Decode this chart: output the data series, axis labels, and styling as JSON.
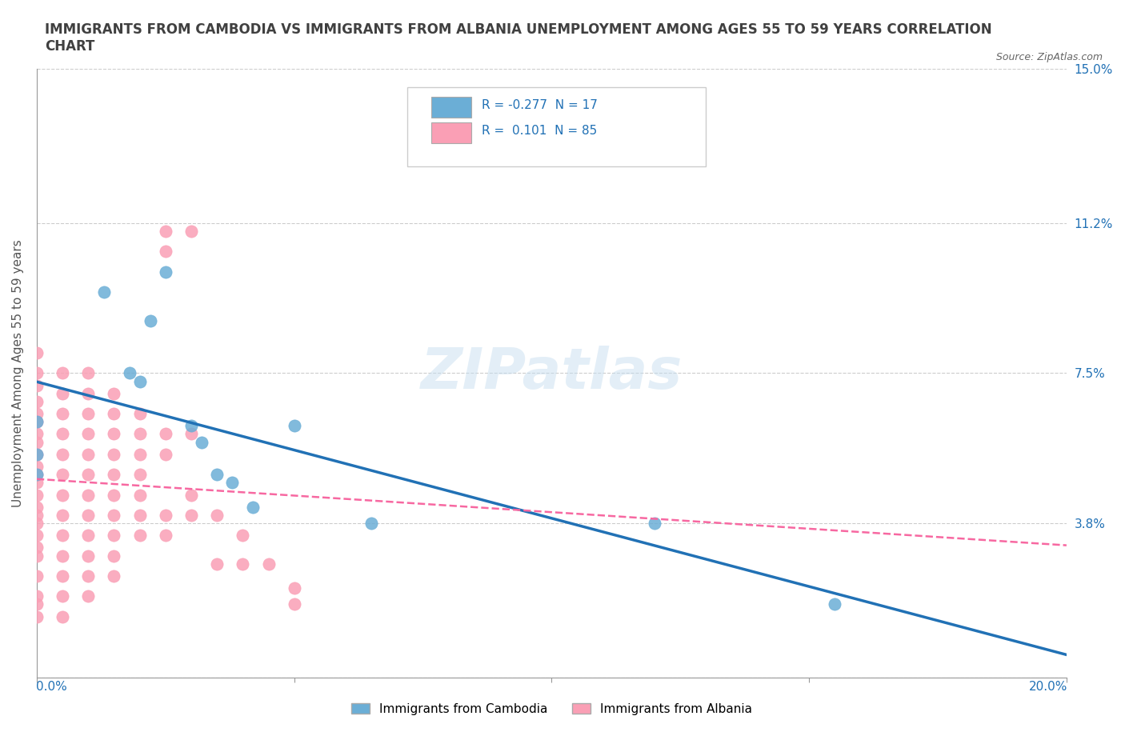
{
  "title": "IMMIGRANTS FROM CAMBODIA VS IMMIGRANTS FROM ALBANIA UNEMPLOYMENT AMONG AGES 55 TO 59 YEARS CORRELATION\nCHART",
  "source": "Source: ZipAtlas.com",
  "ylabel": "Unemployment Among Ages 55 to 59 years",
  "xlim": [
    0.0,
    0.2
  ],
  "ylim": [
    0.0,
    0.15
  ],
  "xticks": [
    0.0,
    0.05,
    0.1,
    0.15,
    0.2
  ],
  "ytick_vals": [
    0.0,
    0.038,
    0.075,
    0.112,
    0.15
  ],
  "ytick_labels": [
    "",
    "3.8%",
    "7.5%",
    "11.2%",
    "15.0%"
  ],
  "watermark": "ZIPatlas",
  "legend_labels": [
    "Immigrants from Cambodia",
    "Immigrants from Albania"
  ],
  "color_cambodia": "#6baed6",
  "color_albania": "#fa9fb5",
  "color_trendline_cambodia": "#2171b5",
  "color_trendline_albania": "#f768a1",
  "background_color": "#ffffff",
  "grid_color": "#cccccc",
  "title_color": "#404040",
  "tick_color": "#2171b5",
  "cambodia_points": [
    [
      0.0,
      0.063
    ],
    [
      0.0,
      0.055
    ],
    [
      0.0,
      0.05
    ],
    [
      0.013,
      0.095
    ],
    [
      0.018,
      0.075
    ],
    [
      0.02,
      0.073
    ],
    [
      0.022,
      0.088
    ],
    [
      0.025,
      0.1
    ],
    [
      0.03,
      0.062
    ],
    [
      0.032,
      0.058
    ],
    [
      0.035,
      0.05
    ],
    [
      0.038,
      0.048
    ],
    [
      0.042,
      0.042
    ],
    [
      0.05,
      0.062
    ],
    [
      0.065,
      0.038
    ],
    [
      0.12,
      0.038
    ],
    [
      0.155,
      0.018
    ]
  ],
  "albania_points": [
    [
      0.0,
      0.08
    ],
    [
      0.0,
      0.075
    ],
    [
      0.0,
      0.072
    ],
    [
      0.0,
      0.068
    ],
    [
      0.0,
      0.065
    ],
    [
      0.0,
      0.063
    ],
    [
      0.0,
      0.06
    ],
    [
      0.0,
      0.058
    ],
    [
      0.0,
      0.055
    ],
    [
      0.0,
      0.052
    ],
    [
      0.0,
      0.05
    ],
    [
      0.0,
      0.048
    ],
    [
      0.0,
      0.045
    ],
    [
      0.0,
      0.042
    ],
    [
      0.0,
      0.04
    ],
    [
      0.0,
      0.038
    ],
    [
      0.0,
      0.035
    ],
    [
      0.0,
      0.032
    ],
    [
      0.0,
      0.03
    ],
    [
      0.0,
      0.025
    ],
    [
      0.0,
      0.02
    ],
    [
      0.0,
      0.018
    ],
    [
      0.0,
      0.015
    ],
    [
      0.005,
      0.075
    ],
    [
      0.005,
      0.07
    ],
    [
      0.005,
      0.065
    ],
    [
      0.005,
      0.06
    ],
    [
      0.005,
      0.055
    ],
    [
      0.005,
      0.05
    ],
    [
      0.005,
      0.045
    ],
    [
      0.005,
      0.04
    ],
    [
      0.005,
      0.035
    ],
    [
      0.005,
      0.03
    ],
    [
      0.005,
      0.025
    ],
    [
      0.005,
      0.02
    ],
    [
      0.005,
      0.015
    ],
    [
      0.01,
      0.075
    ],
    [
      0.01,
      0.07
    ],
    [
      0.01,
      0.065
    ],
    [
      0.01,
      0.06
    ],
    [
      0.01,
      0.055
    ],
    [
      0.01,
      0.05
    ],
    [
      0.01,
      0.045
    ],
    [
      0.01,
      0.04
    ],
    [
      0.01,
      0.035
    ],
    [
      0.01,
      0.03
    ],
    [
      0.01,
      0.025
    ],
    [
      0.01,
      0.02
    ],
    [
      0.015,
      0.07
    ],
    [
      0.015,
      0.065
    ],
    [
      0.015,
      0.06
    ],
    [
      0.015,
      0.055
    ],
    [
      0.015,
      0.05
    ],
    [
      0.015,
      0.045
    ],
    [
      0.015,
      0.04
    ],
    [
      0.015,
      0.035
    ],
    [
      0.015,
      0.03
    ],
    [
      0.015,
      0.025
    ],
    [
      0.02,
      0.065
    ],
    [
      0.02,
      0.06
    ],
    [
      0.02,
      0.055
    ],
    [
      0.02,
      0.05
    ],
    [
      0.02,
      0.045
    ],
    [
      0.02,
      0.04
    ],
    [
      0.02,
      0.035
    ],
    [
      0.025,
      0.11
    ],
    [
      0.025,
      0.105
    ],
    [
      0.025,
      0.06
    ],
    [
      0.025,
      0.055
    ],
    [
      0.025,
      0.04
    ],
    [
      0.025,
      0.035
    ],
    [
      0.03,
      0.11
    ],
    [
      0.03,
      0.06
    ],
    [
      0.03,
      0.045
    ],
    [
      0.03,
      0.04
    ],
    [
      0.035,
      0.04
    ],
    [
      0.035,
      0.028
    ],
    [
      0.04,
      0.035
    ],
    [
      0.04,
      0.028
    ],
    [
      0.045,
      0.028
    ],
    [
      0.05,
      0.022
    ],
    [
      0.05,
      0.018
    ]
  ]
}
